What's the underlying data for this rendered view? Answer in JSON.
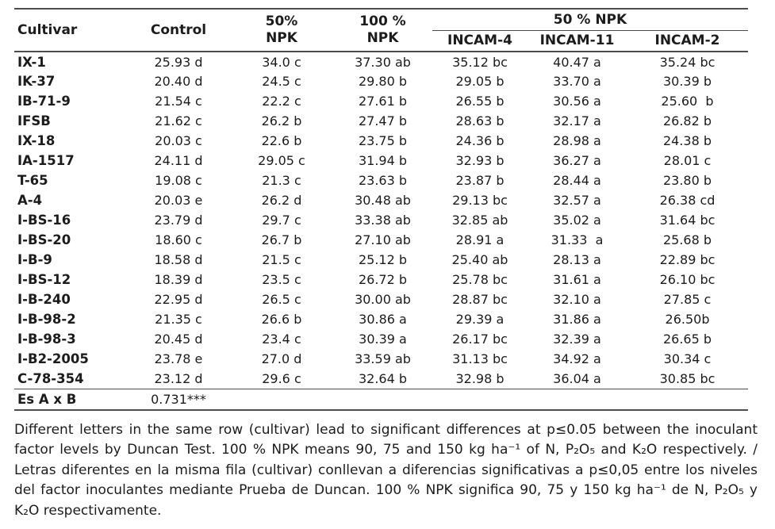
{
  "colors": {
    "text": "#1c1c1c",
    "rule": "#4d4d4d",
    "background": "#ffffff"
  },
  "table": {
    "header": {
      "cultivar": "Cultivar",
      "control": "Control",
      "npk50_line1": "50%",
      "npk50_line2": "NPK",
      "npk100_line1": "100 %",
      "npk100_line2": "NPK",
      "spanner": "50 % NPK",
      "incam4": "INCAM-4",
      "incam11": "INCAM-11",
      "incam2": "INCAM-2"
    },
    "rows": [
      {
        "cultivar": "IX-1",
        "control": "25.93 d",
        "npk50": "34.0 c",
        "npk100": "37.30 ab",
        "incam4": "35.12 bc",
        "incam11": "40.47 a",
        "incam2": "35.24 bc"
      },
      {
        "cultivar": "IK-37",
        "control": "20.40 d",
        "npk50": "24.5 c",
        "npk100": "29.80 b",
        "incam4": "29.05 b",
        "incam11": "33.70 a",
        "incam2": "30.39 b"
      },
      {
        "cultivar": "IB-71-9",
        "control": "21.54 c",
        "npk50": "22.2 c",
        "npk100": "27.61 b",
        "incam4": "26.55 b",
        "incam11": "30.56 a",
        "incam2": "25.60  b"
      },
      {
        "cultivar": "IFSB",
        "control": "21.62 c",
        "npk50": "26.2 b",
        "npk100": "27.47 b",
        "incam4": "28.63 b",
        "incam11": "32.17 a",
        "incam2": "26.82 b"
      },
      {
        "cultivar": "IX-18",
        "control": "20.03 c",
        "npk50": "22.6 b",
        "npk100": "23.75 b",
        "incam4": "24.36 b",
        "incam11": "28.98 a",
        "incam2": "24.38 b"
      },
      {
        "cultivar": "IA-1517",
        "control": "24.11 d",
        "npk50": "29.05 c",
        "npk100": "31.94 b",
        "incam4": "32.93 b",
        "incam11": "36.27 a",
        "incam2": "28.01 c"
      },
      {
        "cultivar": "T-65",
        "control": "19.08 c",
        "npk50": "21.3 c",
        "npk100": "23.63 b",
        "incam4": "23.87 b",
        "incam11": "28.44 a",
        "incam2": "23.80 b"
      },
      {
        "cultivar": "A-4",
        "control": "20.03 e",
        "npk50": "26.2 d",
        "npk100": "30.48 ab",
        "incam4": "29.13 bc",
        "incam11": "32.57 a",
        "incam2": "26.38 cd"
      },
      {
        "cultivar": "I-BS-16",
        "control": "23.79 d",
        "npk50": "29.7 c",
        "npk100": "33.38 ab",
        "incam4": "32.85 ab",
        "incam11": "35.02 a",
        "incam2": "31.64 bc"
      },
      {
        "cultivar": "I-BS-20",
        "control": "18.60 c",
        "npk50": "26.7 b",
        "npk100": "27.10 ab",
        "incam4": "28.91 a",
        "incam11": "31.33  a",
        "incam2": "25.68 b"
      },
      {
        "cultivar": "I-B-9",
        "control": "18.58 d",
        "npk50": "21.5 c",
        "npk100": "25.12 b",
        "incam4": "25.40 ab",
        "incam11": "28.13 a",
        "incam2": "22.89 bc"
      },
      {
        "cultivar": "I-BS-12",
        "control": "18.39 d",
        "npk50": "23.5 c",
        "npk100": "26.72 b",
        "incam4": "25.78 bc",
        "incam11": "31.61 a",
        "incam2": "26.10 bc"
      },
      {
        "cultivar": "I-B-240",
        "control": "22.95 d",
        "npk50": "26.5 c",
        "npk100": "30.00 ab",
        "incam4": "28.87 bc",
        "incam11": "32.10 a",
        "incam2": "27.85 c"
      },
      {
        "cultivar": "I-B-98-2",
        "control": "21.35 c",
        "npk50": "26.6 b",
        "npk100": "30.86 a",
        "incam4": "29.39 a",
        "incam11": "31.86 a",
        "incam2": "26.50b"
      },
      {
        "cultivar": "I-B-98-3",
        "control": "20.45 d",
        "npk50": "23.4 c",
        "npk100": "30.39 a",
        "incam4": "26.17 bc",
        "incam11": "32.39 a",
        "incam2": "26.65 b"
      },
      {
        "cultivar": "I-B2-2005",
        "control": "23.78 e",
        "npk50": "27.0 d",
        "npk100": "33.59 ab",
        "incam4": "31.13 bc",
        "incam11": "34.92 a",
        "incam2": "30.34 c"
      },
      {
        "cultivar": "C-78-354",
        "control": "23.12 d",
        "npk50": "29.6 c",
        "npk100": "32.64 b",
        "incam4": "32.98 b",
        "incam11": "36.04 a",
        "incam2": "30.85 bc"
      }
    ],
    "footer_row": {
      "label": "Es A x B",
      "value": "0.731***"
    }
  },
  "footnote": {
    "text": "Different letters in the same row (cultivar) lead to significant differences at p≤0.05 between the inoculant factor levels by Duncan Test. 100 % NPK means 90, 75 and 150 kg ha⁻¹ of N, P₂O₅ and K₂O respectively. / Letras diferentes en la misma fila (cultivar) conllevan a diferencias significativas a p≤0,05 entre los niveles del factor inoculantes mediante Prueba de Duncan. 100 % NPK significa 90, 75 y 150 kg ha⁻¹ de N, P₂O₅ y K₂O respectivamente."
  }
}
